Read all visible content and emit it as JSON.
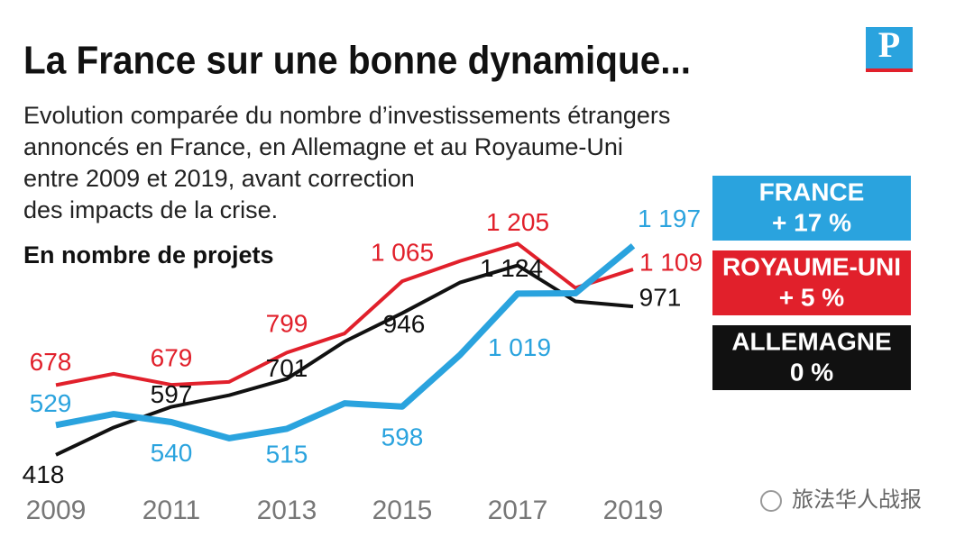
{
  "chart_data": {
    "type": "line",
    "title": "La France sur une bonne dynamique...",
    "subtitle": [
      "Evolution comparée du nombre d’investissements étrangers",
      "annoncés en France, en Allemagne et au Royaume-Uni",
      "entre 2009 et 2019, avant correction",
      "des impacts de la crise."
    ],
    "y_label": "En nombre de projets",
    "logo": "P",
    "watermark": "旅法华人战报",
    "categories": [
      "2009",
      null,
      "2011",
      null,
      "2013",
      null,
      "2015",
      null,
      "2017",
      null,
      "2019"
    ],
    "ylim": [
      300,
      1250
    ],
    "series": [
      {
        "name": "FRANCE",
        "change": "+ 17 %",
        "color": "#2aa3de",
        "values": [
          529,
          570,
          540,
          480,
          515,
          610,
          598,
          790,
          1019,
          1020,
          1197
        ],
        "value_labels": [
          "529",
          null,
          "540",
          null,
          "515",
          null,
          "598",
          null,
          "1 019",
          null,
          "1 197"
        ]
      },
      {
        "name": "ROYAUME-UNI",
        "change": "+ 5 %",
        "color": "#e1202b",
        "values": [
          678,
          720,
          679,
          690,
          799,
          870,
          1065,
          1140,
          1205,
          1040,
          1109
        ],
        "value_labels": [
          "678",
          null,
          "679",
          null,
          "799",
          null,
          "1 065",
          null,
          "1 205",
          null,
          "1 109"
        ]
      },
      {
        "name": "ALLEMAGNE",
        "change": "0 %",
        "color": "#111111",
        "values": [
          418,
          520,
          597,
          640,
          701,
          840,
          946,
          1060,
          1124,
          990,
          971
        ],
        "value_labels": [
          "418",
          null,
          "597",
          null,
          "701",
          null,
          "946",
          null,
          "1 124",
          null,
          "971"
        ]
      }
    ]
  }
}
